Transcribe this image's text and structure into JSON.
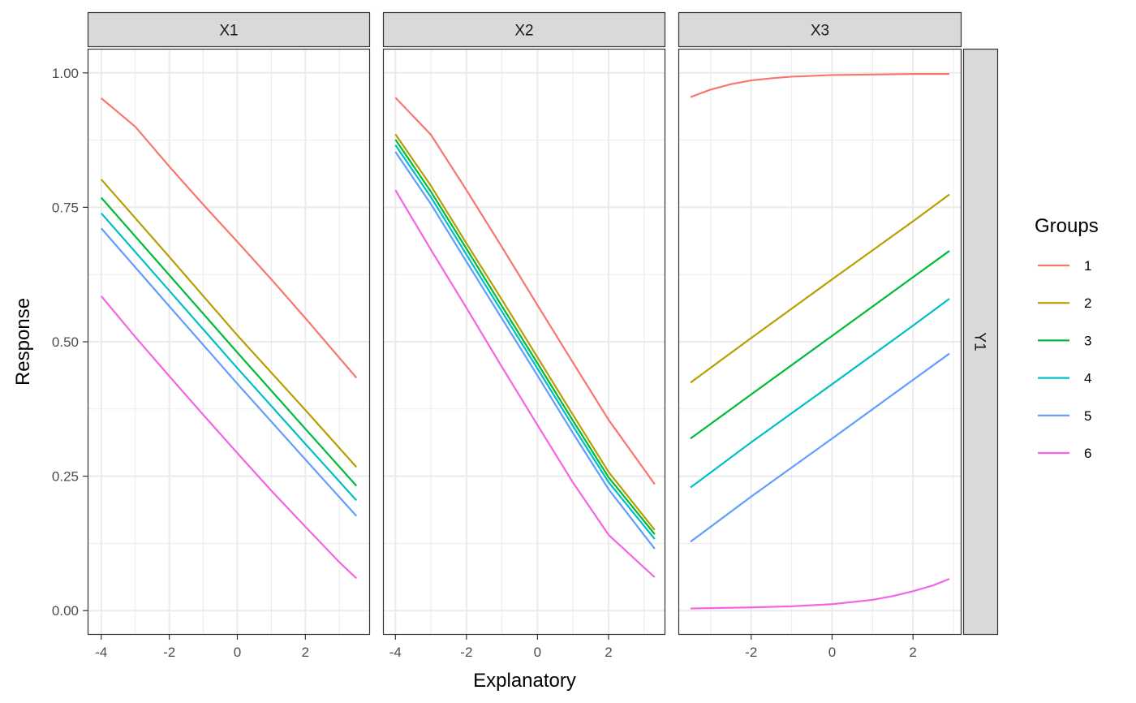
{
  "chart_data": {
    "type": "line",
    "facet_columns": [
      "X1",
      "X2",
      "X3"
    ],
    "facet_row": "Y1",
    "xlabel": "Explanatory",
    "ylabel": "Response",
    "ylim": [
      -0.045,
      1.045
    ],
    "y_ticks": [
      0.0,
      0.25,
      0.5,
      0.75,
      1.0
    ],
    "y_tick_labels": [
      "0.00",
      "0.25",
      "0.50",
      "0.75",
      "1.00"
    ],
    "x_ticks": [
      -4,
      -2,
      0,
      2
    ],
    "x_tick_labels": [
      "-4",
      "-2",
      "0",
      "2"
    ],
    "grid": true,
    "legend": {
      "title": "Groups",
      "position": "right"
    },
    "colors": [
      "#F8766D",
      "#B79F00",
      "#00BA38",
      "#00BFC4",
      "#619CFF",
      "#F564E3"
    ],
    "panels": [
      {
        "facet": "X1",
        "xlim": [
          -4.4,
          3.9
        ],
        "series": [
          {
            "name": "1",
            "x": [
              -4.0,
              -3.0,
              -2.0,
              -1.0,
              0.0,
              1.0,
              2.0,
              3.5
            ],
            "y": [
              0.953,
              0.9,
              0.826,
              0.755,
              0.686,
              0.616,
              0.544,
              0.433
            ]
          },
          {
            "name": "2",
            "x": [
              -4.0,
              -2.0,
              0.0,
              2.0,
              3.5
            ],
            "y": [
              0.802,
              0.658,
              0.512,
              0.373,
              0.267
            ]
          },
          {
            "name": "3",
            "x": [
              -4.0,
              -2.0,
              0.0,
              2.0,
              3.5
            ],
            "y": [
              0.768,
              0.624,
              0.48,
              0.338,
              0.232
            ]
          },
          {
            "name": "4",
            "x": [
              -4.0,
              -2.0,
              0.0,
              2.0,
              3.5
            ],
            "y": [
              0.739,
              0.595,
              0.451,
              0.31,
              0.205
            ]
          },
          {
            "name": "5",
            "x": [
              -4.0,
              -2.0,
              0.0,
              2.0,
              3.5
            ],
            "y": [
              0.711,
              0.566,
              0.422,
              0.281,
              0.176
            ]
          },
          {
            "name": "6",
            "x": [
              -4.0,
              -3.0,
              -2.0,
              -1.0,
              0.0,
              1.0,
              2.0,
              3.0,
              3.5
            ],
            "y": [
              0.585,
              0.509,
              0.436,
              0.364,
              0.293,
              0.223,
              0.156,
              0.09,
              0.06
            ]
          }
        ]
      },
      {
        "facet": "X2",
        "xlim": [
          -4.35,
          3.6
        ],
        "series": [
          {
            "name": "1",
            "x": [
              -4.0,
              -3.0,
              -2.0,
              -1.0,
              0.0,
              1.0,
              2.0,
              3.3
            ],
            "y": [
              0.954,
              0.885,
              0.782,
              0.676,
              0.568,
              0.461,
              0.355,
              0.235
            ]
          },
          {
            "name": "2",
            "x": [
              -4.0,
              -3.0,
              -2.0,
              -1.0,
              0.0,
              1.0,
              2.0,
              3.3
            ],
            "y": [
              0.886,
              0.79,
              0.683,
              0.578,
              0.471,
              0.364,
              0.258,
              0.15
            ]
          },
          {
            "name": "3",
            "x": [
              -4.0,
              -3.0,
              -2.0,
              -1.0,
              0.0,
              1.0,
              2.0,
              3.3
            ],
            "y": [
              0.876,
              0.779,
              0.673,
              0.566,
              0.46,
              0.353,
              0.248,
              0.142
            ]
          },
          {
            "name": "4",
            "x": [
              -4.0,
              -3.0,
              -2.0,
              -1.0,
              0.0,
              1.0,
              2.0,
              3.3
            ],
            "y": [
              0.866,
              0.769,
              0.662,
              0.556,
              0.45,
              0.343,
              0.239,
              0.133
            ]
          },
          {
            "name": "5",
            "x": [
              -4.0,
              -3.0,
              -2.0,
              -1.0,
              0.0,
              1.0,
              2.0,
              3.3
            ],
            "y": [
              0.853,
              0.756,
              0.649,
              0.543,
              0.437,
              0.33,
              0.226,
              0.115
            ]
          },
          {
            "name": "6",
            "x": [
              -4.0,
              -3.0,
              -2.0,
              -1.0,
              0.0,
              1.0,
              2.0,
              3.0,
              3.3
            ],
            "y": [
              0.782,
              0.671,
              0.563,
              0.453,
              0.345,
              0.238,
              0.141,
              0.08,
              0.062
            ]
          }
        ]
      },
      {
        "facet": "X3",
        "xlim": [
          -3.8,
          3.2
        ],
        "series": [
          {
            "name": "1",
            "x": [
              -3.5,
              -3.0,
              -2.5,
              -2.0,
              -1.5,
              -1.0,
              0.0,
              1.0,
              2.0,
              2.9
            ],
            "y": [
              0.955,
              0.969,
              0.979,
              0.986,
              0.99,
              0.993,
              0.996,
              0.997,
              0.998,
              0.998
            ]
          },
          {
            "name": "2",
            "x": [
              -3.5,
              -2.0,
              0.0,
              2.0,
              2.9
            ],
            "y": [
              0.424,
              0.507,
              0.616,
              0.724,
              0.774
            ]
          },
          {
            "name": "3",
            "x": [
              -3.5,
              -2.0,
              0.0,
              2.0,
              2.9
            ],
            "y": [
              0.32,
              0.402,
              0.511,
              0.62,
              0.669
            ]
          },
          {
            "name": "4",
            "x": [
              -3.5,
              -2.0,
              0.0,
              2.0,
              2.9
            ],
            "y": [
              0.229,
              0.313,
              0.421,
              0.53,
              0.58
            ]
          },
          {
            "name": "5",
            "x": [
              -3.5,
              -2.0,
              0.0,
              2.0,
              2.9
            ],
            "y": [
              0.128,
              0.212,
              0.32,
              0.429,
              0.478
            ]
          },
          {
            "name": "6",
            "x": [
              -3.5,
              -2.0,
              -1.0,
              0.0,
              1.0,
              1.5,
              2.0,
              2.5,
              2.9
            ],
            "y": [
              0.004,
              0.006,
              0.008,
              0.012,
              0.02,
              0.027,
              0.036,
              0.047,
              0.059
            ]
          }
        ]
      }
    ]
  }
}
